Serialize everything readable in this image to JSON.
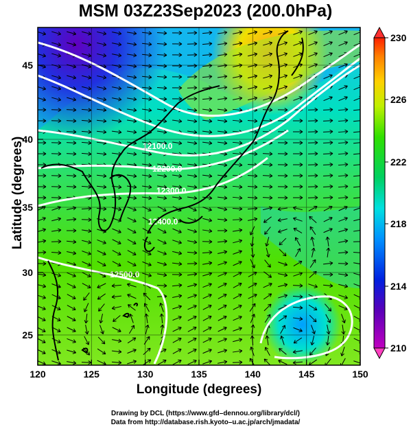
{
  "title": "MSM 03Z23Sep2023 (200.0hPa)",
  "xaxis": {
    "label": "Longitude (degrees)",
    "ticks": [
      "120",
      "125",
      "130",
      "135",
      "140",
      "145",
      "150"
    ],
    "range": [
      120,
      150
    ]
  },
  "yaxis": {
    "label": "Latitude  (degrees)",
    "ticks": [
      "25",
      "30",
      "35",
      "40",
      "45"
    ],
    "range": [
      22.5,
      47.5
    ]
  },
  "colorbar": {
    "ticks": [
      "230",
      "226",
      "222",
      "218",
      "214",
      "210"
    ],
    "range": [
      210,
      230
    ]
  },
  "contour_labels": [
    "12100.0",
    "12200.0",
    "12300.0",
    "12400.0",
    "12500.0"
  ],
  "footer": {
    "line1": "Drawing by DCL (https://www.gfd–dennou.org/library/dcl/)",
    "line2": "Data from http://database.rish.kyoto–u.ac.jp/arch/jmadata/"
  }
}
